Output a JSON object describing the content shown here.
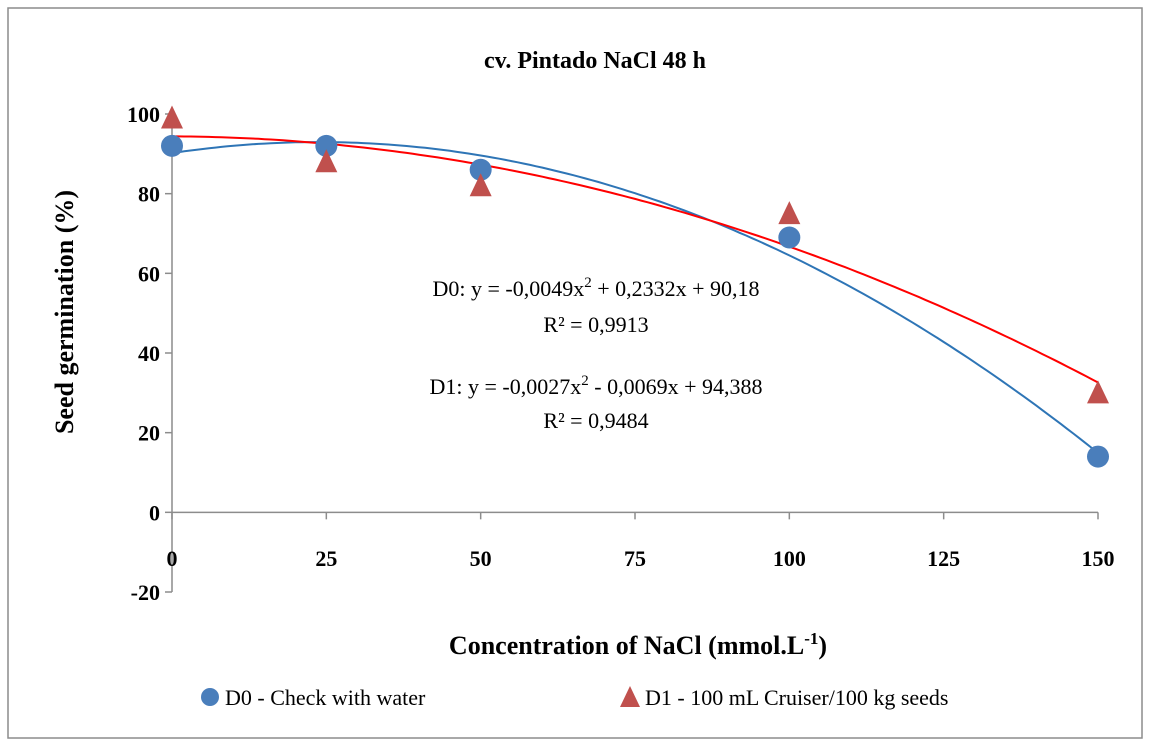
{
  "chart_data": {
    "type": "scatter",
    "title": "cv. Pintado  NaCl 48 h",
    "xlabel": "Concentration of NaCl (mmol.L",
    "xlabel_sup": "-1",
    "xlabel_end": ")",
    "ylabel": "Seed germination  (%)",
    "xlim": [
      0,
      150
    ],
    "ylim": [
      -20,
      100
    ],
    "x_ticks": [
      0,
      25,
      50,
      75,
      100,
      125,
      150
    ],
    "y_ticks": [
      -20,
      0,
      20,
      40,
      60,
      80,
      100
    ],
    "grid": false,
    "legend_position": "bottom",
    "series": [
      {
        "name": "D0 - Check with water",
        "marker": "circle",
        "color": "#4a7ebb",
        "x": [
          0,
          25,
          50,
          100,
          150
        ],
        "y": [
          92,
          92,
          86,
          69,
          14
        ],
        "trendline": {
          "type": "polynomial",
          "color": "#2e75b6",
          "coefficients": [
            -0.0049,
            0.2332,
            90.18
          ],
          "equation_label": "D0: y = -0,0049x",
          "equation_sup": "2",
          "equation_rest": " + 0,2332x + 90,18",
          "r2_label": "R² = 0,9913"
        }
      },
      {
        "name": "D1 - 100 mL Cruiser/100 kg seeds",
        "marker": "triangle",
        "color": "#c0504d",
        "x": [
          0,
          25,
          50,
          100,
          150
        ],
        "y": [
          99,
          88,
          82,
          75,
          30
        ],
        "trendline": {
          "type": "polynomial",
          "color": "#ff0000",
          "coefficients": [
            -0.0027,
            -0.0069,
            94.388
          ],
          "equation_label": "D1: y = -0,0027x",
          "equation_sup": "2",
          "equation_rest": " - 0,0069x + 94,388",
          "r2_label": "R² = 0,9484"
        }
      }
    ]
  }
}
